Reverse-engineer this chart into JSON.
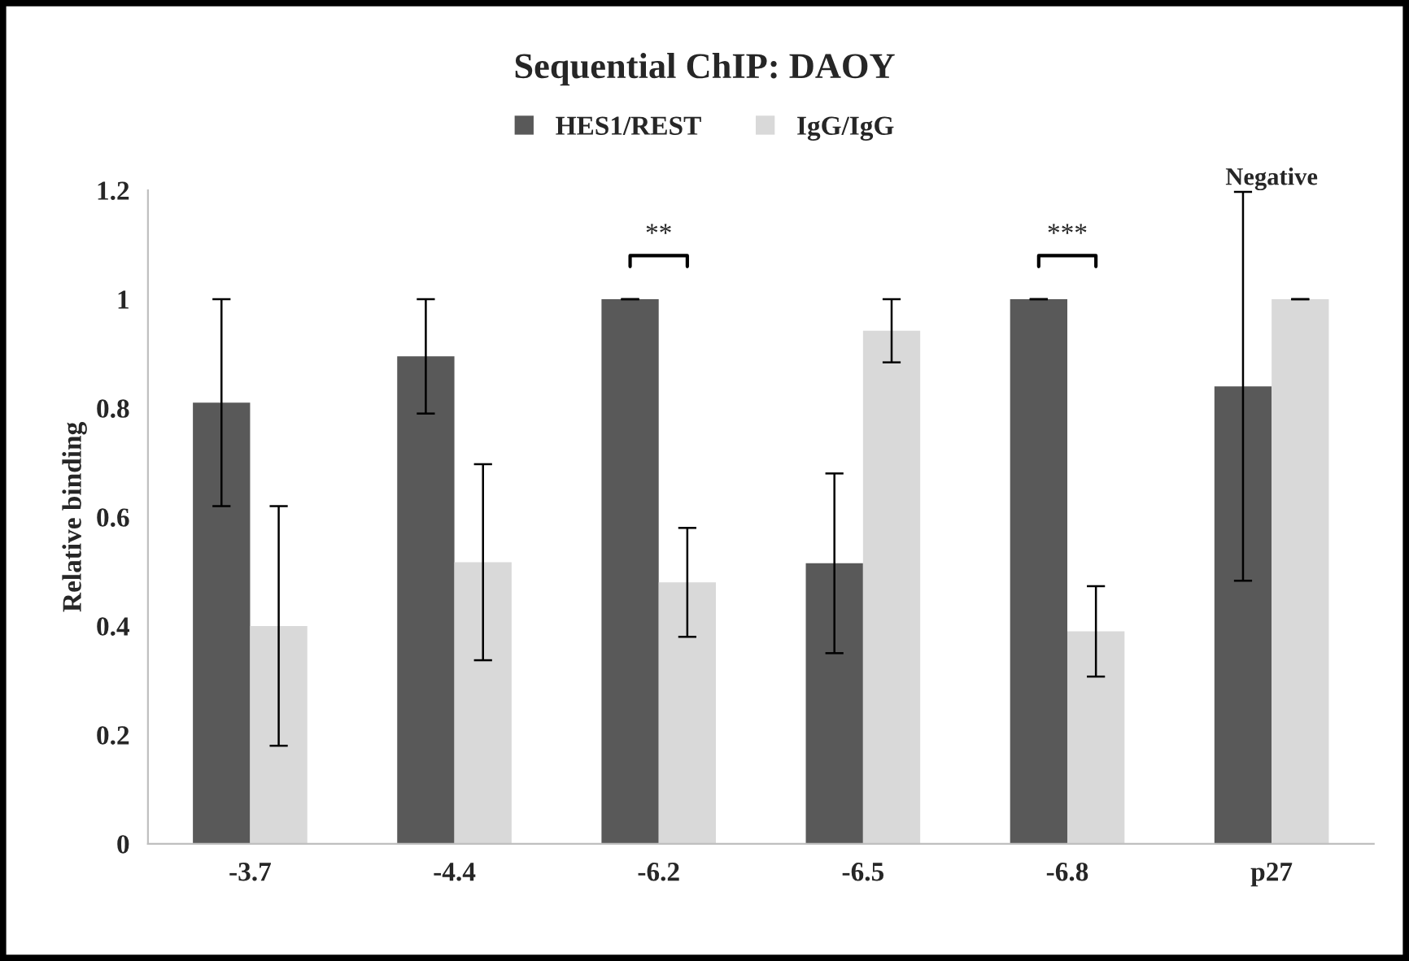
{
  "chart_data": {
    "type": "bar",
    "title": "Sequential ChIP: DAOY",
    "ylabel": "Relative binding",
    "categories": [
      "-3.7",
      "-4.4",
      "-6.2",
      "-6.5",
      "-6.8",
      "p27"
    ],
    "series": [
      {
        "name": "HES1/REST",
        "color": "#595959",
        "values": [
          0.81,
          0.895,
          1.0,
          0.515,
          1.0,
          0.84
        ],
        "errors": [
          0.19,
          0.105,
          0,
          0.165,
          0,
          0.357
        ]
      },
      {
        "name": "IgG/IgG",
        "color": "#d9d9d9",
        "values": [
          0.4,
          0.517,
          0.48,
          0.942,
          0.39,
          1.0
        ],
        "errors": [
          0.22,
          0.18,
          0.1,
          0.058,
          0.083,
          0
        ]
      }
    ],
    "ylim": [
      0,
      1.2
    ],
    "yticks": [
      0,
      0.2,
      0.4,
      0.6,
      0.8,
      1,
      1.2
    ],
    "annotations": [
      "**",
      "***",
      "Negative"
    ],
    "legend": "top",
    "grid": false
  }
}
